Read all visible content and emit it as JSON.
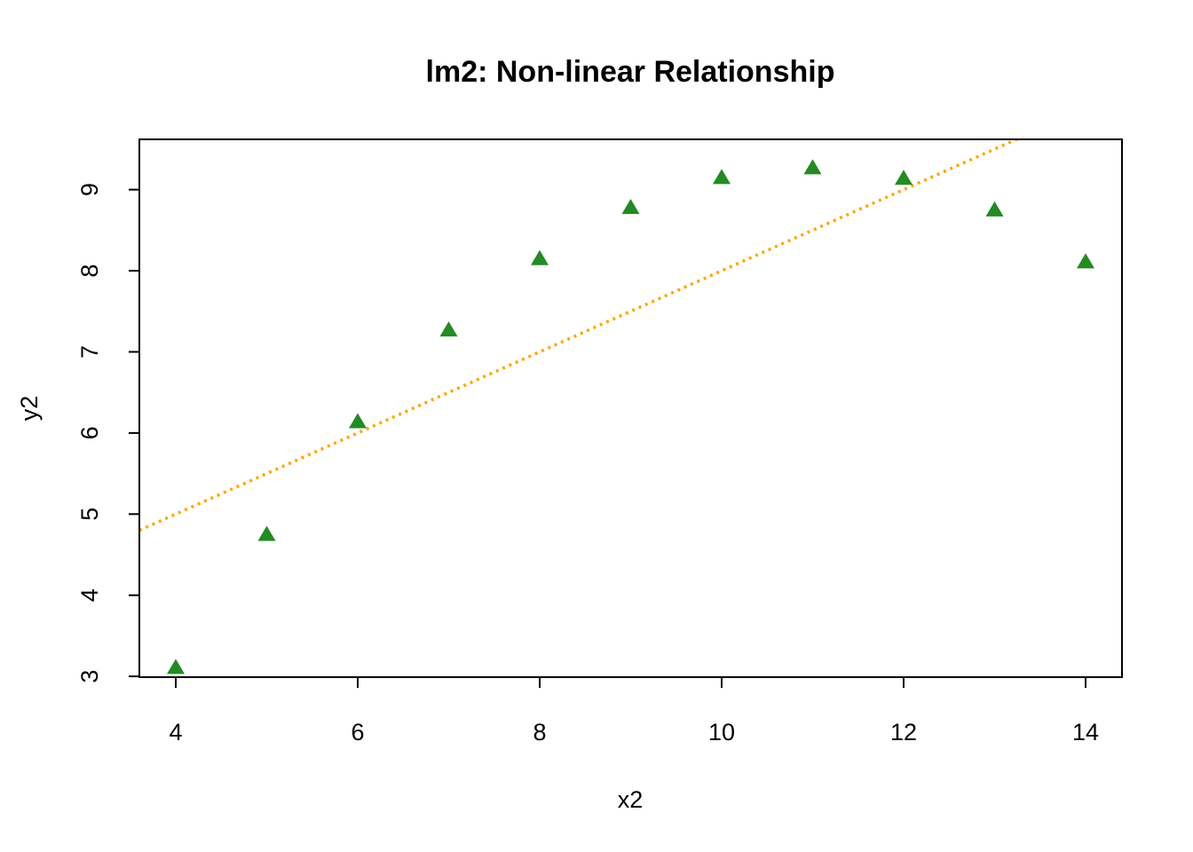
{
  "chart_data": {
    "type": "scatter",
    "title": "lm2: Non-linear Relationship",
    "xlabel": "x2",
    "ylabel": "y2",
    "xlim": [
      3.6,
      14.4
    ],
    "ylim": [
      2.99,
      9.62
    ],
    "x_ticks": [
      4,
      6,
      8,
      10,
      12,
      14
    ],
    "y_ticks": [
      3,
      4,
      5,
      6,
      7,
      8,
      9
    ],
    "grid": false,
    "legend": "none",
    "series": [
      {
        "marker": "filled-triangle",
        "color": "#228B22",
        "x": [
          4,
          5,
          6,
          7,
          8,
          9,
          10,
          11,
          12,
          13,
          14
        ],
        "y": [
          3.1,
          4.74,
          6.13,
          7.26,
          8.14,
          8.77,
          9.14,
          9.26,
          9.13,
          8.74,
          8.1
        ]
      }
    ],
    "lines": [
      {
        "kind": "fit-line",
        "style": "dotted",
        "color": "#FFA500",
        "intercept": 3.0,
        "slope": 0.5
      }
    ]
  }
}
